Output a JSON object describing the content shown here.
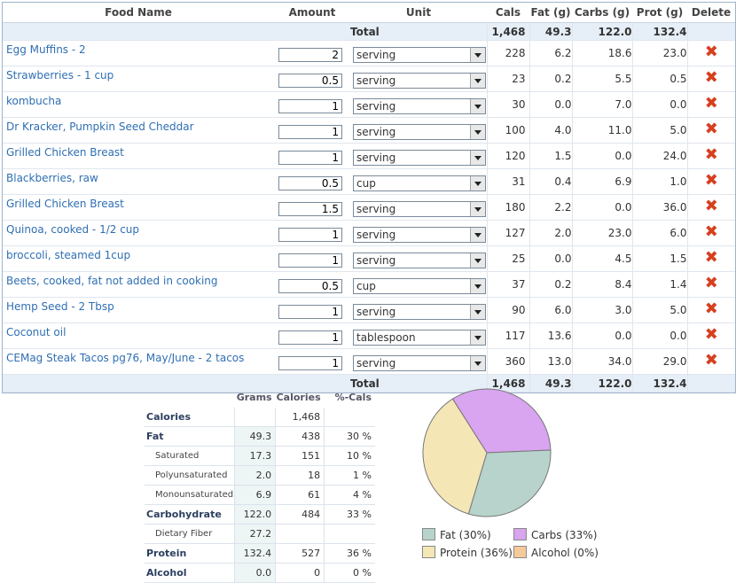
{
  "headers": {
    "food_name": "Food Name",
    "amount": "Amount",
    "unit": "Unit",
    "cals": "Cals",
    "fat": "Fat (g)",
    "carbs": "Carbs (g)",
    "prot": "Prot (g)",
    "delete": "Delete"
  },
  "total": {
    "label": "Total",
    "cals": "1,468",
    "fat": "49.3",
    "carbs": "122.0",
    "prot": "132.4"
  },
  "foods": [
    {
      "name": "Egg Muffins - 2",
      "amount": "2",
      "unit": "serving",
      "cals": "228",
      "fat": "6.2",
      "carbs": "18.6",
      "prot": "23.0"
    },
    {
      "name": "Strawberries - 1 cup",
      "amount": "0.5",
      "unit": "serving",
      "cals": "23",
      "fat": "0.2",
      "carbs": "5.5",
      "prot": "0.5"
    },
    {
      "name": "kombucha",
      "amount": "1",
      "unit": "serving",
      "cals": "30",
      "fat": "0.0",
      "carbs": "7.0",
      "prot": "0.0"
    },
    {
      "name": "Dr Kracker, Pumpkin Seed Cheddar",
      "amount": "1",
      "unit": "serving",
      "cals": "100",
      "fat": "4.0",
      "carbs": "11.0",
      "prot": "5.0"
    },
    {
      "name": "Grilled Chicken Breast",
      "amount": "1",
      "unit": "serving",
      "cals": "120",
      "fat": "1.5",
      "carbs": "0.0",
      "prot": "24.0"
    },
    {
      "name": "Blackberries, raw",
      "amount": "0.5",
      "unit": "cup",
      "cals": "31",
      "fat": "0.4",
      "carbs": "6.9",
      "prot": "1.0"
    },
    {
      "name": "Grilled Chicken Breast",
      "amount": "1.5",
      "unit": "serving",
      "cals": "180",
      "fat": "2.2",
      "carbs": "0.0",
      "prot": "36.0"
    },
    {
      "name": "Quinoa, cooked - 1/2 cup",
      "amount": "1",
      "unit": "serving",
      "cals": "127",
      "fat": "2.0",
      "carbs": "23.0",
      "prot": "6.0"
    },
    {
      "name": "broccoli, steamed 1cup",
      "amount": "1",
      "unit": "serving",
      "cals": "25",
      "fat": "0.0",
      "carbs": "4.5",
      "prot": "1.5"
    },
    {
      "name": "Beets, cooked, fat not added in cooking",
      "amount": "0.5",
      "unit": "cup",
      "cals": "37",
      "fat": "0.2",
      "carbs": "8.4",
      "prot": "1.4"
    },
    {
      "name": "Hemp Seed - 2 Tbsp",
      "amount": "1",
      "unit": "serving",
      "cals": "90",
      "fat": "6.0",
      "carbs": "3.0",
      "prot": "5.0"
    },
    {
      "name": "Coconut oil",
      "amount": "1",
      "unit": "tablespoon",
      "cals": "117",
      "fat": "13.6",
      "carbs": "0.0",
      "prot": "0.0"
    },
    {
      "name": "CEMag Steak Tacos pg76, May/June - 2 tacos",
      "amount": "1",
      "unit": "serving",
      "cals": "360",
      "fat": "13.0",
      "carbs": "34.0",
      "prot": "29.0"
    }
  ],
  "nutrients": {
    "headers": {
      "grams": "Grams",
      "calories": "Calories",
      "pct": "%-Cals"
    },
    "rows": [
      {
        "label": "Calories",
        "grams": "",
        "calories": "1,468",
        "pct": "",
        "sub": false
      },
      {
        "label": "Fat",
        "grams": "49.3",
        "calories": "438",
        "pct": "30 %",
        "sub": false
      },
      {
        "label": "Saturated",
        "grams": "17.3",
        "calories": "151",
        "pct": "10 %",
        "sub": true
      },
      {
        "label": "Polyunsaturated",
        "grams": "2.0",
        "calories": "18",
        "pct": "1 %",
        "sub": true
      },
      {
        "label": "Monounsaturated",
        "grams": "6.9",
        "calories": "61",
        "pct": "4 %",
        "sub": true
      },
      {
        "label": "Carbohydrate",
        "grams": "122.0",
        "calories": "484",
        "pct": "33 %",
        "sub": false
      },
      {
        "label": "Dietary Fiber",
        "grams": "27.2",
        "calories": "",
        "pct": "",
        "sub": true
      },
      {
        "label": "Protein",
        "grams": "132.4",
        "calories": "527",
        "pct": "36 %",
        "sub": false
      },
      {
        "label": "Alcohol",
        "grams": "0.0",
        "calories": "0",
        "pct": "0 %",
        "sub": false
      }
    ]
  },
  "chart_data": {
    "type": "pie",
    "slices": [
      {
        "name": "Fat",
        "value": 30,
        "label": "Fat  (30%)",
        "color": "#b7d3cc"
      },
      {
        "name": "Carbs",
        "value": 33,
        "label": "Carbs  (33%)",
        "color": "#d9a4f0"
      },
      {
        "name": "Protein",
        "value": 36,
        "label": "Protein  (36%)",
        "color": "#f5e6b6"
      },
      {
        "name": "Alcohol",
        "value": 0,
        "label": "Alcohol  (0%)",
        "color": "#f6c99a"
      }
    ]
  },
  "icons": {
    "delete": "delete-x-icon",
    "dropdown": "chevron-down-icon"
  }
}
